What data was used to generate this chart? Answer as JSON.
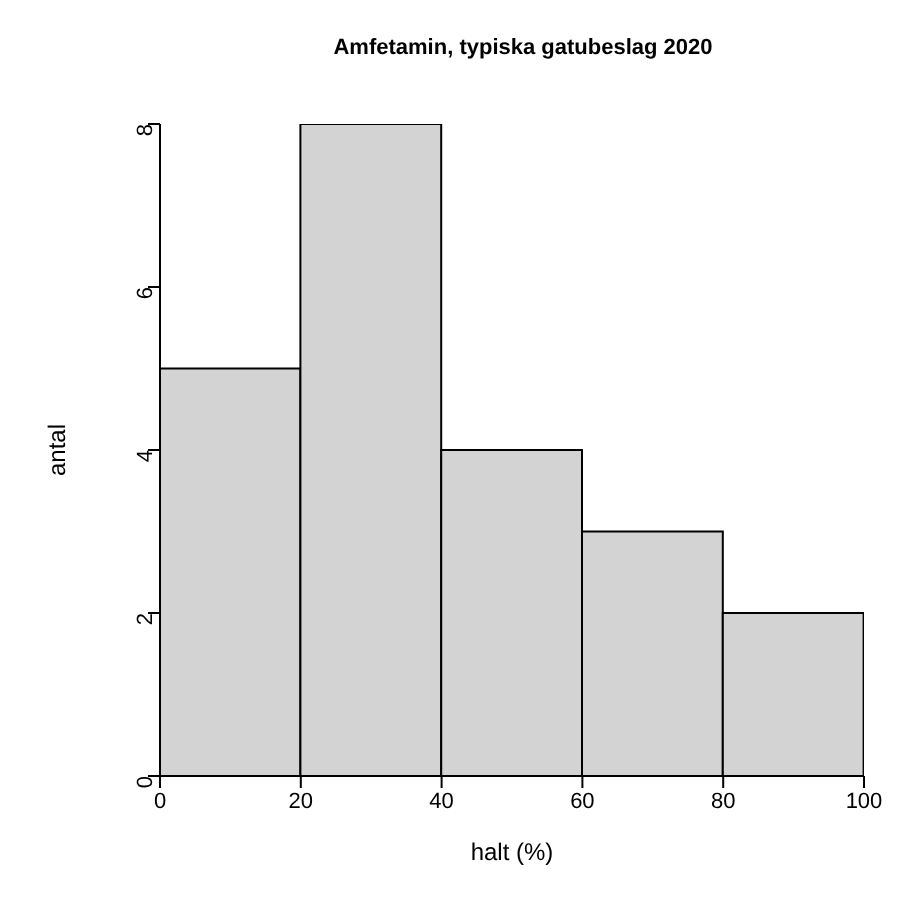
{
  "chart_data": {
    "type": "histogram",
    "title": "Amfetamin, typiska gatubeslag 2020",
    "xlabel": "halt (%)",
    "ylabel": "antal",
    "bins": [
      0,
      20,
      40,
      60,
      80,
      100
    ],
    "values": [
      5,
      8,
      4,
      3,
      2
    ],
    "color": "#d3d3d3",
    "xlim": [
      0,
      100
    ],
    "xticks": [
      0,
      20,
      40,
      60,
      80,
      100
    ],
    "ylim": [
      0,
      8
    ],
    "yticks": [
      0,
      2,
      4,
      6,
      8
    ],
    "grid": false,
    "legend": false
  }
}
